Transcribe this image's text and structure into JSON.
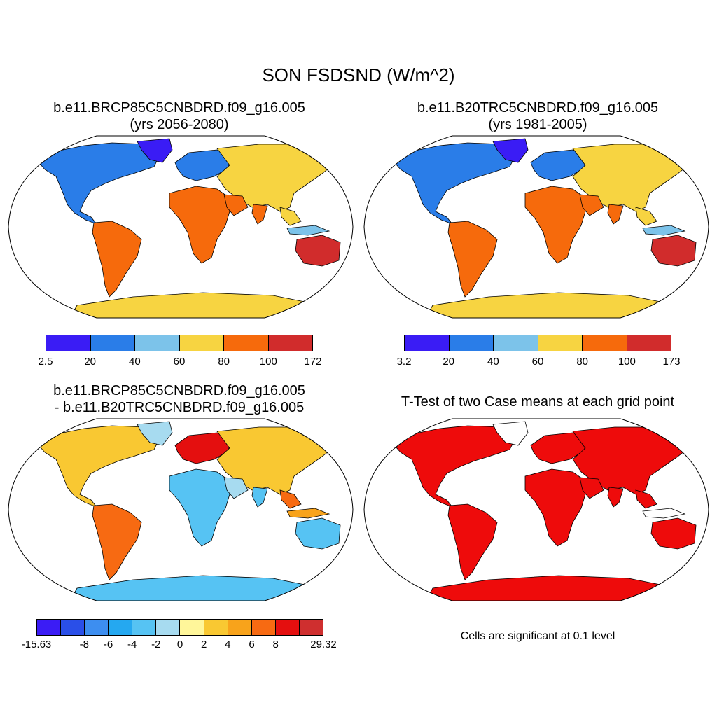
{
  "title": "SON FSDSND (W/m^2)",
  "panels": [
    {
      "title_line1": "b.e11.BRCP85C5CNBDRD.f09_g16.005",
      "title_line2": "(yrs 2056-2080)",
      "colorbar": {
        "colors": [
          "#3a1cf5",
          "#2a7de8",
          "#7cc3ea",
          "#f7d441",
          "#f66a0c",
          "#d12c2c"
        ],
        "ticks": [
          "2.5",
          "20",
          "40",
          "60",
          "80",
          "100",
          "172"
        ]
      }
    },
    {
      "title_line1": "b.e11.B20TRC5CNBDRD.f09_g16.005",
      "title_line2": "(yrs 1981-2005)",
      "colorbar": {
        "colors": [
          "#3a1cf5",
          "#2a7de8",
          "#7cc3ea",
          "#f7d441",
          "#f66a0c",
          "#d12c2c"
        ],
        "ticks": [
          "3.2",
          "20",
          "40",
          "60",
          "80",
          "100",
          "173"
        ]
      }
    },
    {
      "title_line1": "b.e11.BRCP85C5CNBDRD.f09_g16.005",
      "title_line2": "- b.e11.B20TRC5CNBDRD.f09_g16.005",
      "colorbar": {
        "colors": [
          "#3b1cf5",
          "#2a4fe8",
          "#3d8ef0",
          "#25a8f0",
          "#56c3f3",
          "#a7dbf0",
          "#fff69a",
          "#f9c832",
          "#f8a31b",
          "#f76a12",
          "#e40f0f",
          "#cf2f2f"
        ],
        "ticks": [
          "-15.63",
          "-8",
          "-6",
          "-4",
          "-2",
          "0",
          "2",
          "4",
          "6",
          "8",
          "29.32"
        ]
      }
    },
    {
      "title_line1": "T-Test of two Case means at each grid point",
      "title_line2": "",
      "note": "Cells are significant at 0.1 level"
    }
  ]
}
